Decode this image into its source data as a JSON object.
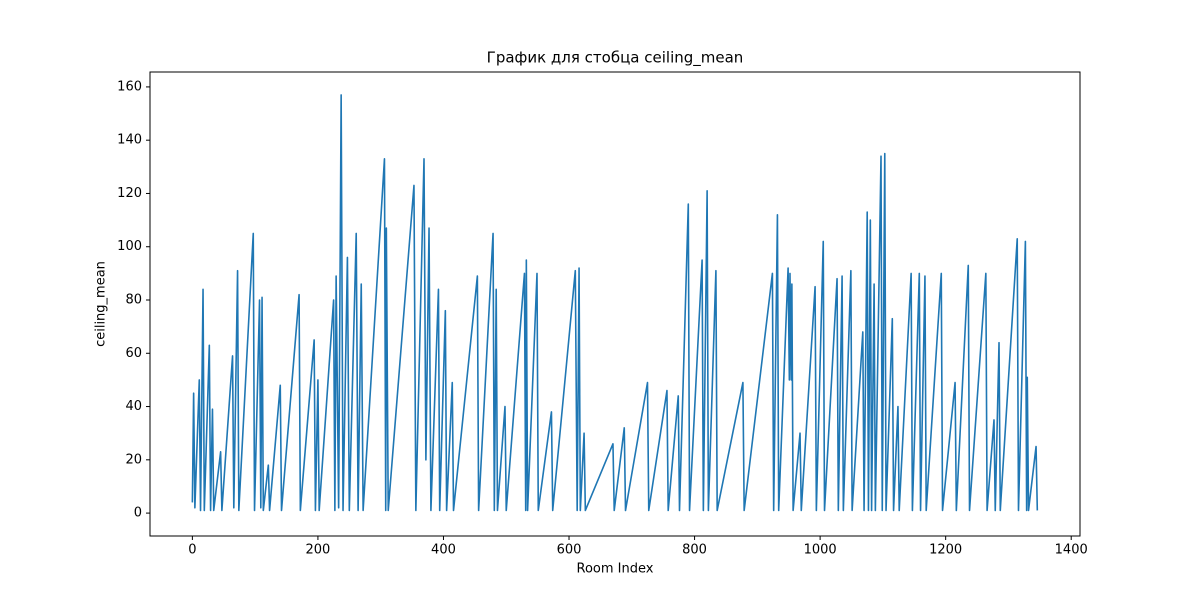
{
  "chart_data": {
    "type": "line",
    "title": "График для стобца ceiling_mean",
    "x_label": "Room Index",
    "y_label": "ceiling_mean",
    "xlim": [
      -67.5,
      1414
    ],
    "ylim": [
      -8.6,
      165.6
    ],
    "xticks": [
      0,
      200,
      400,
      600,
      800,
      1000,
      1200,
      1400
    ],
    "yticks": [
      0,
      20,
      40,
      60,
      80,
      100,
      120,
      140,
      160
    ],
    "grid": false,
    "x": [
      0,
      2,
      4,
      11,
      13,
      17,
      19,
      27,
      29,
      32,
      34,
      45,
      47,
      64,
      66,
      72,
      74,
      97,
      99,
      107,
      109,
      111,
      113,
      121,
      123,
      140,
      142,
      170,
      172,
      194,
      196,
      200,
      202,
      225,
      227,
      229,
      233,
      237,
      240,
      247,
      250,
      261,
      264,
      269,
      272,
      306,
      308,
      309,
      312,
      353,
      356,
      369,
      372,
      377,
      380,
      392,
      394,
      403,
      405,
      414,
      416,
      454,
      456,
      479,
      481,
      484,
      486,
      498,
      500,
      529,
      531,
      532,
      534,
      549,
      551,
      572,
      574,
      610,
      613,
      616,
      618,
      624,
      626,
      670,
      672,
      688,
      690,
      725,
      727,
      756,
      758,
      774,
      776,
      790,
      792,
      812,
      814,
      820,
      822,
      834,
      836,
      877,
      879,
      924,
      926,
      932,
      934,
      949,
      951,
      952,
      954,
      955,
      957,
      968,
      970,
      992,
      994,
      1005,
      1007,
      1027,
      1029,
      1035,
      1037,
      1049,
      1051,
      1068,
      1070,
      1075,
      1077,
      1080,
      1082,
      1086,
      1088,
      1097,
      1099,
      1103,
      1105,
      1115,
      1117,
      1124,
      1126,
      1145,
      1147,
      1158,
      1160,
      1167,
      1169,
      1193,
      1195,
      1215,
      1217,
      1236,
      1238,
      1264,
      1266,
      1277,
      1279,
      1285,
      1287,
      1314,
      1316,
      1327,
      1329,
      1330,
      1332,
      1344,
      1346
    ],
    "series": [
      {
        "name": "ceiling_mean",
        "color": "#1f77b4",
        "values": [
          4,
          45,
          2,
          50,
          1,
          84,
          1,
          63,
          1,
          39,
          1,
          23,
          1,
          59,
          2,
          91,
          1,
          105,
          1,
          80,
          2,
          81,
          1,
          18,
          1,
          48,
          1,
          82,
          1,
          65,
          1,
          50,
          1,
          80,
          1,
          89,
          2,
          157,
          1,
          96,
          1,
          105,
          1,
          86,
          1,
          133,
          1,
          107,
          1,
          123,
          1,
          133,
          20,
          107,
          1,
          84,
          1,
          76,
          1,
          49,
          1,
          89,
          1,
          105,
          1,
          84,
          1,
          40,
          1,
          90,
          1,
          95,
          1,
          90,
          1,
          38,
          1,
          91,
          1,
          92,
          1,
          30,
          1,
          26,
          1,
          32,
          1,
          49,
          1,
          46,
          1,
          44,
          1,
          116,
          1,
          95,
          1,
          121,
          1,
          91,
          1,
          49,
          1,
          90,
          1,
          112,
          1,
          92,
          50,
          90,
          50,
          86,
          1,
          30,
          1,
          85,
          1,
          102,
          1,
          88,
          1,
          89,
          1,
          91,
          1,
          68,
          1,
          113,
          1,
          110,
          1,
          86,
          1,
          134,
          1,
          135,
          1,
          73,
          1,
          40,
          1,
          90,
          1,
          90,
          1,
          89,
          1,
          90,
          1,
          49,
          1,
          93,
          1,
          90,
          1,
          35,
          1,
          64,
          1,
          103,
          1,
          102,
          1,
          51,
          1,
          25,
          1
        ]
      }
    ]
  }
}
